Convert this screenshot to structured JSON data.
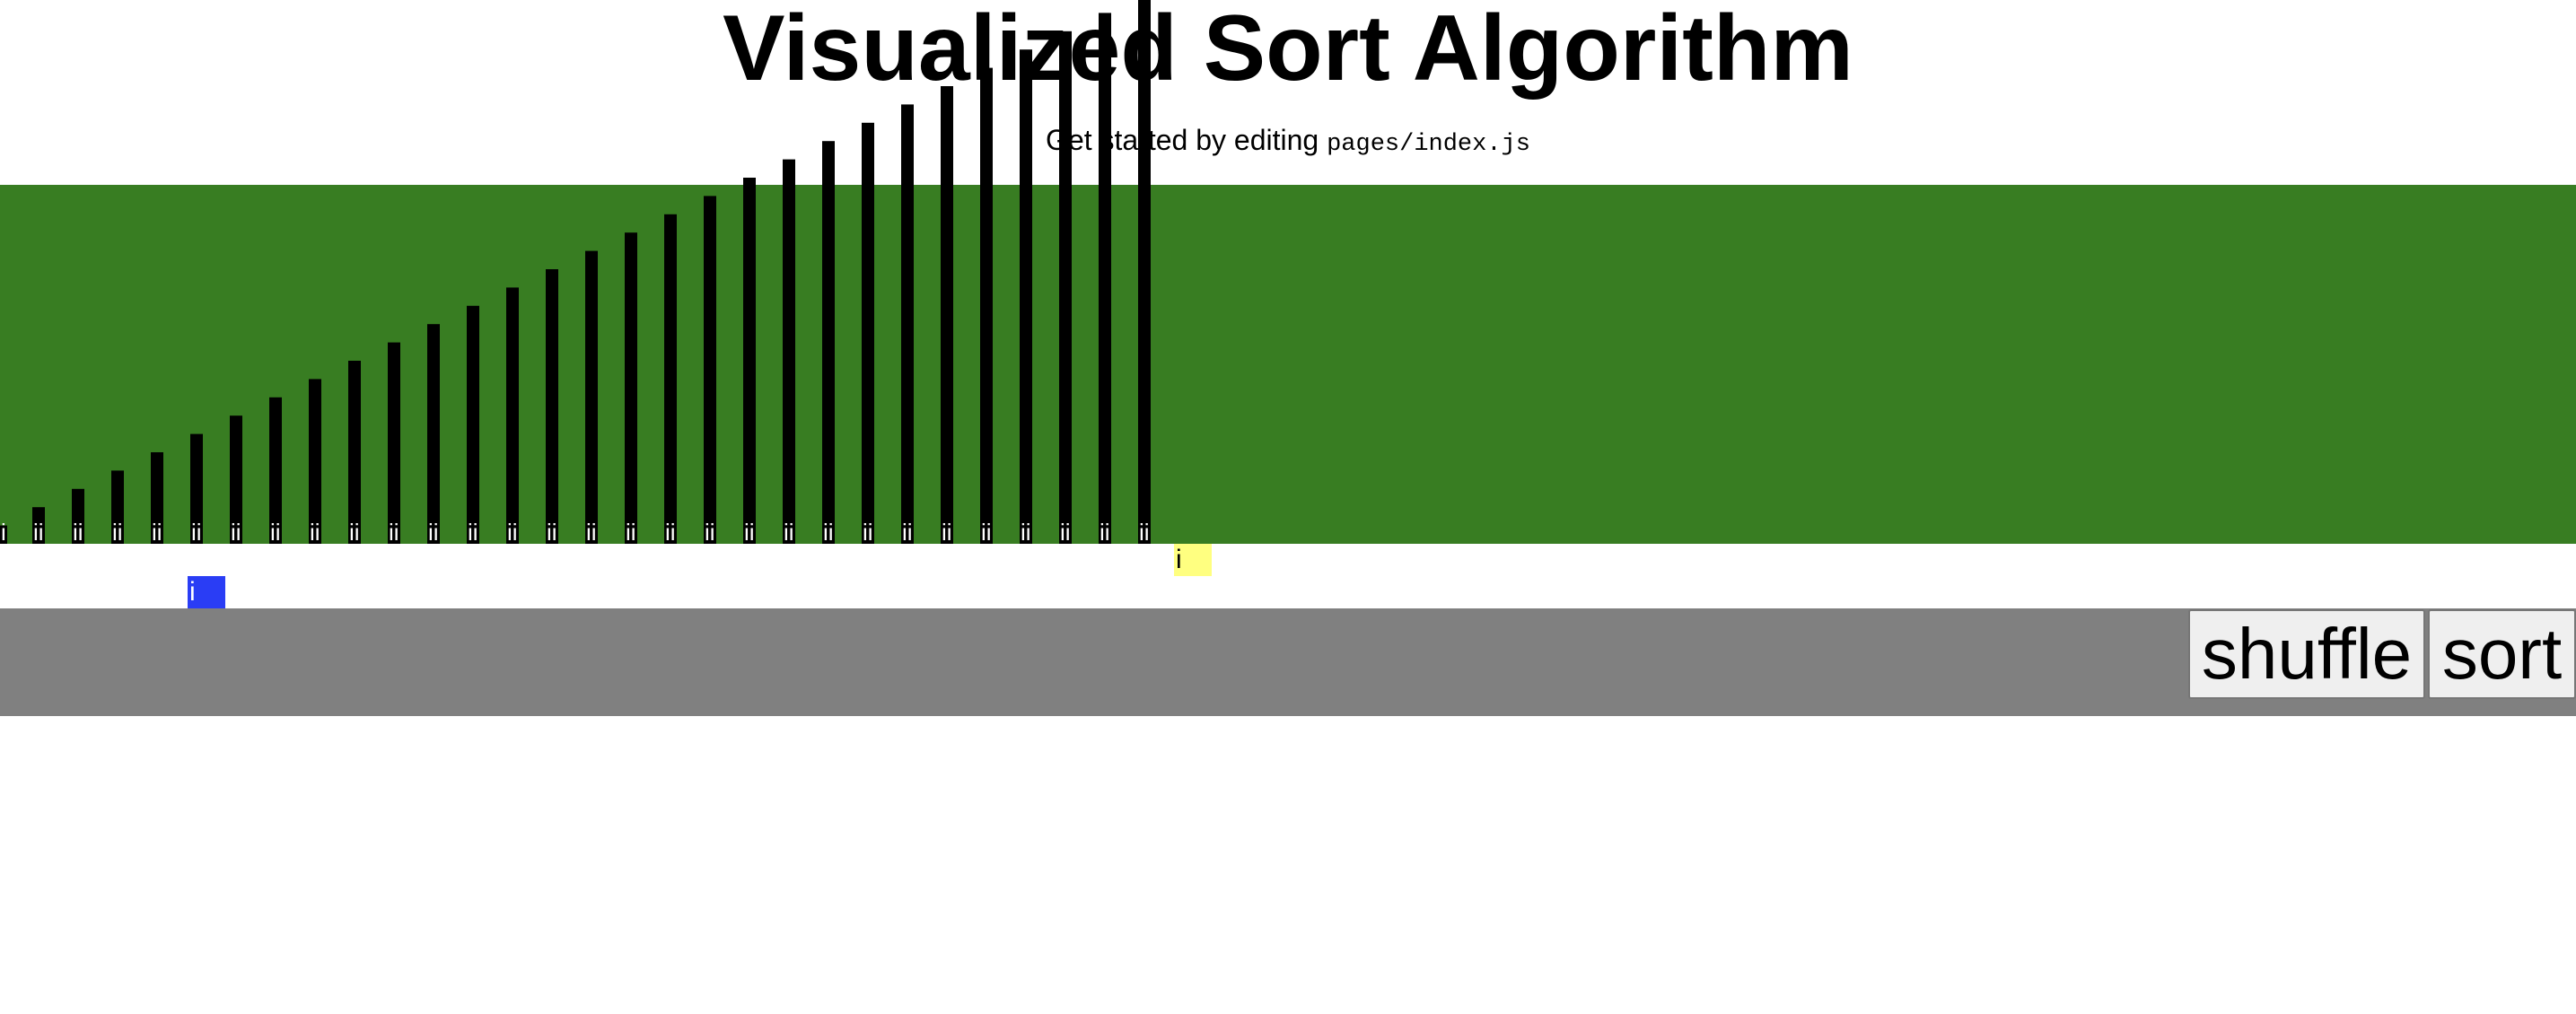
{
  "header": {
    "title": "Visualized Sort Algorithm",
    "subtitle_text": "Get started by editing ",
    "subtitle_code": "pages/index.js"
  },
  "visualizer": {
    "background_color": "#387d22",
    "bar_color": "#000000",
    "bar_label": "i",
    "values": [
      1,
      2,
      3,
      4,
      5,
      6,
      7,
      8,
      9,
      10,
      11,
      12,
      13,
      14,
      15,
      16,
      17,
      18,
      19,
      20,
      21,
      22,
      23,
      24,
      25,
      26,
      27,
      28,
      29,
      30
    ]
  },
  "markers": {
    "compare_label": "i",
    "compare_color": "#ffff80",
    "current_label": "i",
    "current_color": "#2a3df5"
  },
  "controls": {
    "background_color": "#808080",
    "shuffle_label": "shuffle",
    "sort_label": "sort"
  }
}
